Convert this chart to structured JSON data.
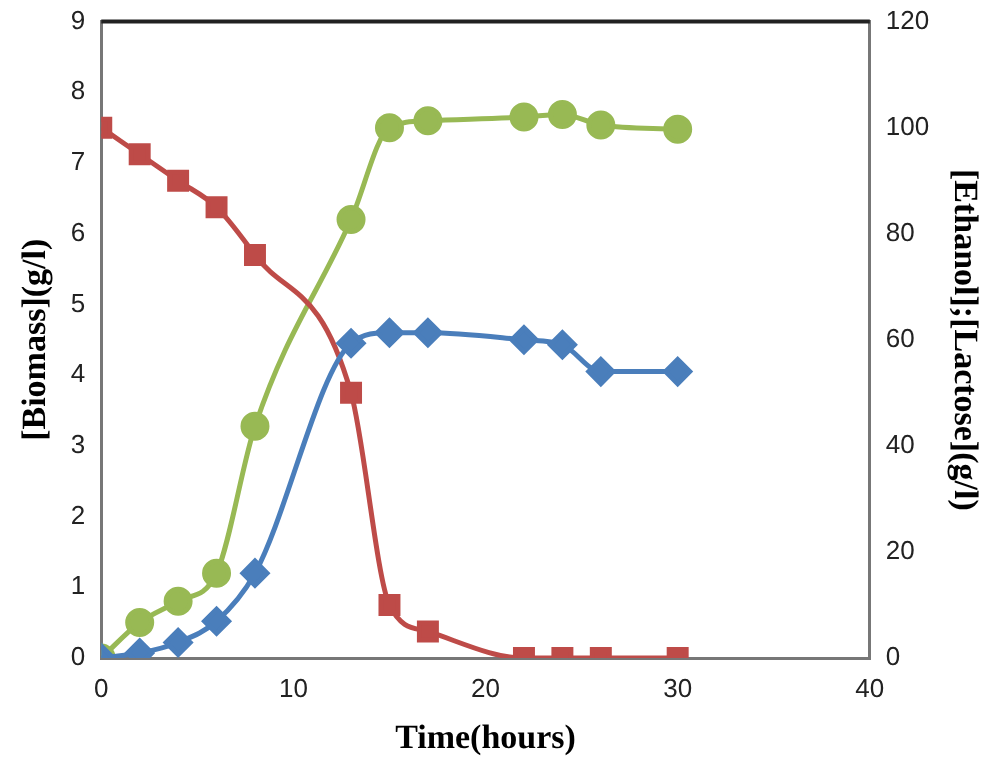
{
  "chart_data": {
    "type": "line",
    "xlabel": "Time(hours)",
    "ylabel": "[Biomass](g/l)",
    "y2label": "[Ethanol];[Lactose](g/l)",
    "x": [
      0,
      2,
      4,
      6,
      8,
      13,
      15,
      17,
      22,
      24,
      26,
      30
    ],
    "xlim": [
      0,
      40
    ],
    "xticks": [
      0,
      10,
      20,
      30,
      40
    ],
    "ylim": [
      0,
      9
    ],
    "yticks": [
      0,
      1,
      2,
      3,
      4,
      5,
      6,
      7,
      8,
      9
    ],
    "y2lim": [
      0,
      120
    ],
    "y2ticks": [
      0,
      20,
      40,
      60,
      80,
      100,
      120
    ],
    "grid": false,
    "legend": false,
    "series": [
      {
        "color": "#4a7ebb",
        "marker": "diamond",
        "values": [
          0,
          0.07,
          0.22,
          0.52,
          1.2,
          4.45,
          4.6,
          4.6,
          4.5,
          4.43,
          4.05,
          4.05
        ]
      },
      {
        "color": "#be4b48",
        "marker": "square",
        "axis": "y2",
        "values": [
          100,
          95,
          90,
          85,
          76,
          50,
          10,
          5,
          0,
          0,
          0,
          0
        ]
      },
      {
        "color": "#98b954",
        "marker": "circle",
        "axis": "y2",
        "values": [
          0,
          6.7,
          10.7,
          16,
          43.7,
          82.7,
          100,
          101.3,
          102,
          102.5,
          100.5,
          99.7
        ]
      }
    ]
  }
}
